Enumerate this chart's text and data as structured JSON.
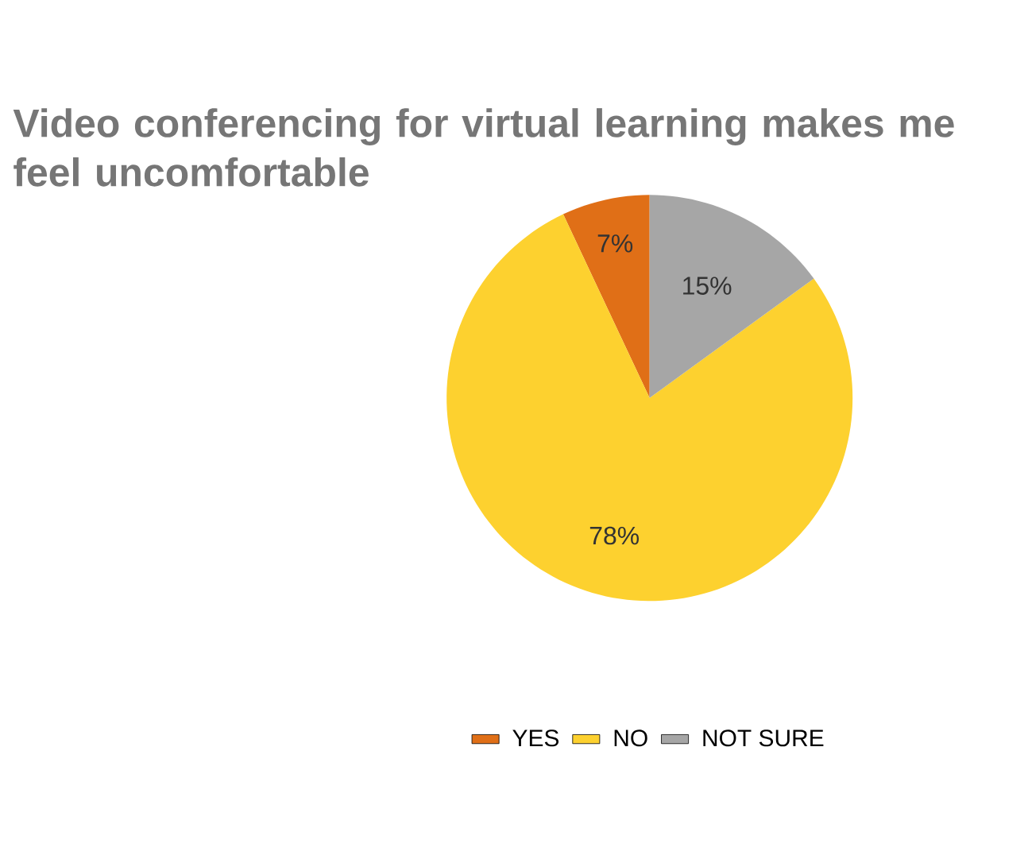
{
  "chart_data": {
    "type": "pie",
    "title": "Video conferencing for virtual learning makes me feel uncomfortable",
    "categories": [
      "YES",
      "NO",
      "NOT SURE"
    ],
    "values": [
      7,
      78,
      15
    ],
    "value_labels": [
      "7%",
      "78%",
      "15%"
    ],
    "colors": [
      "#e06f17",
      "#fdd12f",
      "#a6a6a6"
    ],
    "legend": "bottom"
  }
}
